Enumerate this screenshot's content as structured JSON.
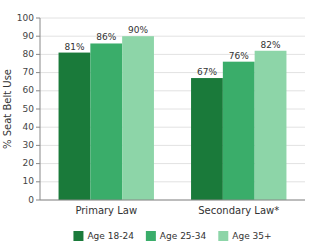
{
  "chart_data": {
    "type": "bar",
    "ylabel": "% Seat Belt Use",
    "categories": [
      "Primary Law",
      "Secondary Law*"
    ],
    "series": [
      {
        "name": "Age 18-24",
        "color": "#1a7a3a",
        "values": [
          81,
          67
        ],
        "value_labels": [
          "81%",
          "67%"
        ]
      },
      {
        "name": "Age 25-34",
        "color": "#3aad6a",
        "values": [
          86,
          76
        ],
        "value_labels": [
          "86%",
          "76%"
        ]
      },
      {
        "name": "Age 35+",
        "color": "#8dd5a8",
        "values": [
          90,
          82
        ],
        "value_labels": [
          "90%",
          "82%"
        ]
      }
    ],
    "ylim": [
      0,
      100
    ],
    "yticks": [
      0,
      10,
      20,
      30,
      40,
      50,
      60,
      70,
      80,
      90,
      100
    ],
    "grid": true,
    "legend": "bottom",
    "data_labels": true
  }
}
